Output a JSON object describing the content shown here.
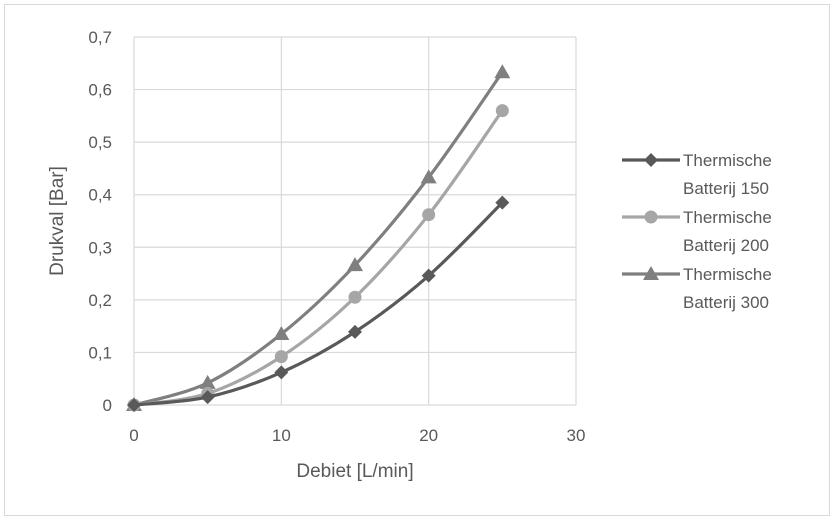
{
  "chart_data": {
    "type": "line",
    "title": "",
    "xlabel": "Debiet [L/min]",
    "ylabel": "Drukval [Bar]",
    "xlim": [
      0,
      30
    ],
    "ylim": [
      0,
      0.7
    ],
    "x_ticks": [
      0,
      10,
      20,
      30
    ],
    "y_ticks": [
      0,
      0.1,
      0.2,
      0.3,
      0.4,
      0.5,
      0.6,
      0.7
    ],
    "x_tick_labels": [
      "0",
      "10",
      "20",
      "30"
    ],
    "y_tick_labels": [
      "0",
      "0,1",
      "0,2",
      "0,3",
      "0,4",
      "0,5",
      "0,6",
      "0,7"
    ],
    "grid": true,
    "legend_position": "right",
    "smooth": true,
    "x": [
      0,
      5,
      10,
      15,
      20,
      25
    ],
    "series": [
      {
        "name": "Thermische Batterij 150",
        "legend_lines": [
          "Thermische",
          "Batterij 150"
        ],
        "values": [
          0,
          0.015,
          0.062,
          0.139,
          0.246,
          0.385
        ],
        "color": "#595959",
        "marker": "diamond"
      },
      {
        "name": "Thermische Batterij 200",
        "legend_lines": [
          "Thermische",
          "Batterij 200"
        ],
        "values": [
          0,
          0.022,
          0.092,
          0.205,
          0.362,
          0.56
        ],
        "color": "#a6a6a6",
        "marker": "circle"
      },
      {
        "name": "Thermische Batterij 300",
        "legend_lines": [
          "Thermische",
          "Batterij 300"
        ],
        "values": [
          0,
          0.042,
          0.135,
          0.266,
          0.433,
          0.633
        ],
        "color": "#7f7f7f",
        "marker": "triangle"
      }
    ],
    "colors": {
      "grid": "#d9d9d9",
      "text": "#595959"
    }
  }
}
